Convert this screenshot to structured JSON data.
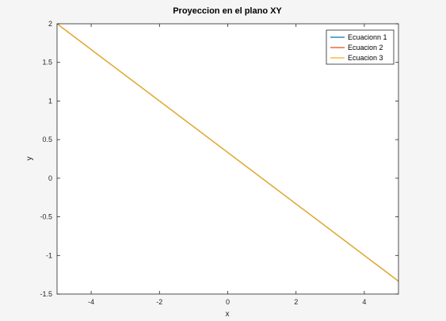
{
  "chart_data": {
    "type": "line",
    "title": "Proyeccion en el plano XY",
    "xlabel": "x",
    "ylabel": "y",
    "xlim": [
      -5,
      5
    ],
    "ylim": [
      -1.5,
      2
    ],
    "xticks": [
      -4,
      -2,
      0,
      2,
      4
    ],
    "xtick_labels": [
      "-4",
      "-2",
      "0",
      "2",
      "4"
    ],
    "yticks": [
      -1.5,
      -1,
      -0.5,
      0,
      0.5,
      1,
      1.5,
      2
    ],
    "ytick_labels": [
      "-1.5",
      "-1",
      "-0.5",
      "0",
      "0.5",
      "1",
      "1.5",
      "2"
    ],
    "grid": false,
    "legend_position": "top-right",
    "series": [
      {
        "name": "Ecuacionn 1",
        "color": "#0072BD",
        "x": [
          -5,
          5
        ],
        "y": [
          2.0,
          -1.333
        ]
      },
      {
        "name": "Ecuacion 2",
        "color": "#D95319",
        "x": [
          -5,
          5
        ],
        "y": [
          2.0,
          -1.333
        ]
      },
      {
        "name": "Ecuacion 3",
        "color": "#EDB120",
        "x": [
          -5,
          5
        ],
        "y": [
          2.0,
          -1.333
        ]
      }
    ]
  }
}
